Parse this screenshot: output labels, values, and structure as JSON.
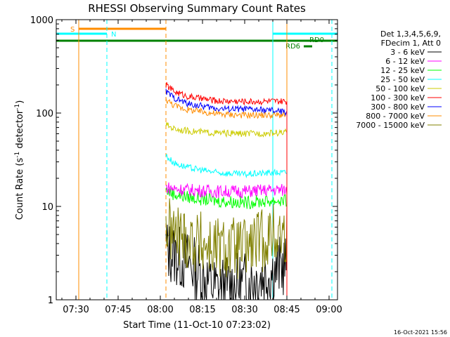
{
  "chart_data": {
    "type": "line",
    "title": "RHESSI Observing Summary Count Rates",
    "xlabel": "Start Time (11-Oct-10 07:23:02)",
    "ylabel": "Count Rate (s⁻¹ detector⁻¹)",
    "ylabel_main": "Count Rate (s",
    "ylabel_sup1": "-1",
    "ylabel_mid": " detector",
    "ylabel_sup2": "-1",
    "ylabel_end": ")",
    "yscale": "log",
    "ylim": [
      1,
      1000
    ],
    "xlim": [
      "07:23",
      "09:03"
    ],
    "xticks": [
      "07:30",
      "07:45",
      "08:00",
      "08:15",
      "08:30",
      "08:45",
      "09:00"
    ],
    "yticks": [
      "1",
      "10",
      "100",
      "1000"
    ],
    "timestamp": "16-Oct-2021 15:56",
    "legend": {
      "position": "right",
      "header": [
        "Det 1,3,4,5,6,9,",
        "FDecim 1, Att 0"
      ]
    },
    "flags": {
      "S": {
        "label": "S",
        "start": "07:31",
        "end": "08:02",
        "color": "#ff8c00"
      },
      "N": {
        "label": "N",
        "start": "07:23",
        "end": "07:41",
        "color": "#00ffff"
      },
      "N2": {
        "start": "08:40",
        "end": "09:03",
        "color": "#00ffff"
      },
      "green_bar": {
        "start": "07:23",
        "end": "09:03",
        "color": "#008000"
      },
      "RD6": {
        "label": "RD6",
        "start": "08:51",
        "end": "08:54",
        "color": "#008000"
      },
      "RD0": {
        "label": "RD0"
      }
    },
    "vertical_lines": [
      {
        "time": "07:31",
        "color": "#ff8c00",
        "style": "solid"
      },
      {
        "time": "07:41",
        "color": "#00ffff",
        "style": "dashed"
      },
      {
        "time": "08:02",
        "color": "#ff8c00",
        "style": "dashed"
      },
      {
        "time": "08:40",
        "color": "#00ffff",
        "style": "solid"
      },
      {
        "time": "08:45",
        "color": "#ff8c00",
        "style": "solid"
      },
      {
        "time": "09:01",
        "color": "#00ffff",
        "style": "dashed"
      }
    ],
    "series": [
      {
        "name": "3 - 6 keV",
        "color": "#000000",
        "x": [
          "08:02",
          "08:05",
          "08:10",
          "08:20",
          "08:30",
          "08:40",
          "08:45"
        ],
        "y": [
          3.5,
          3.0,
          2.5,
          1.3,
          1.5,
          2.0,
          2.5
        ]
      },
      {
        "name": "6 - 12 keV",
        "color": "#ff00ff",
        "x": [
          "08:02",
          "08:05",
          "08:10",
          "08:20",
          "08:30",
          "08:40",
          "08:45"
        ],
        "y": [
          16,
          15.5,
          15,
          14.5,
          14.5,
          15,
          15
        ]
      },
      {
        "name": "12 - 25 keV",
        "color": "#00ff00",
        "x": [
          "08:02",
          "08:05",
          "08:10",
          "08:20",
          "08:30",
          "08:40",
          "08:45"
        ],
        "y": [
          15,
          13.5,
          12.5,
          11.5,
          11,
          11.5,
          11.5
        ]
      },
      {
        "name": "25 - 50 keV",
        "color": "#00ffff",
        "x": [
          "08:02",
          "08:05",
          "08:10",
          "08:20",
          "08:30",
          "08:40",
          "08:45"
        ],
        "y": [
          35,
          29,
          26,
          23,
          22,
          23,
          23
        ]
      },
      {
        "name": "50 - 100 keV",
        "color": "#cccc00",
        "x": [
          "08:02",
          "08:05",
          "08:10",
          "08:20",
          "08:30",
          "08:40",
          "08:45"
        ],
        "y": [
          75,
          68,
          64,
          61,
          60,
          61,
          62
        ]
      },
      {
        "name": "100 - 300 keV",
        "color": "#ff0000",
        "x": [
          "08:02",
          "08:05",
          "08:10",
          "08:20",
          "08:30",
          "08:40",
          "08:45"
        ],
        "y": [
          200,
          170,
          150,
          135,
          133,
          133,
          132
        ]
      },
      {
        "name": "300 - 800 keV",
        "color": "#0000ff",
        "x": [
          "08:02",
          "08:05",
          "08:10",
          "08:20",
          "08:30",
          "08:40",
          "08:45"
        ],
        "y": [
          170,
          145,
          125,
          112,
          110,
          106,
          102
        ]
      },
      {
        "name": "800 - 7000 keV",
        "color": "#ff8c00",
        "x": [
          "08:02",
          "08:05",
          "08:10",
          "08:20",
          "08:30",
          "08:40",
          "08:45"
        ],
        "y": [
          140,
          120,
          108,
          98,
          95,
          95,
          95
        ]
      },
      {
        "name": "7000 - 15000 keV",
        "color": "#808000",
        "x": [
          "08:02",
          "08:05",
          "08:10",
          "08:20",
          "08:30",
          "08:40",
          "08:45"
        ],
        "y": [
          6.0,
          5.0,
          4.5,
          3.5,
          3.5,
          5.0,
          5.0
        ]
      }
    ]
  }
}
